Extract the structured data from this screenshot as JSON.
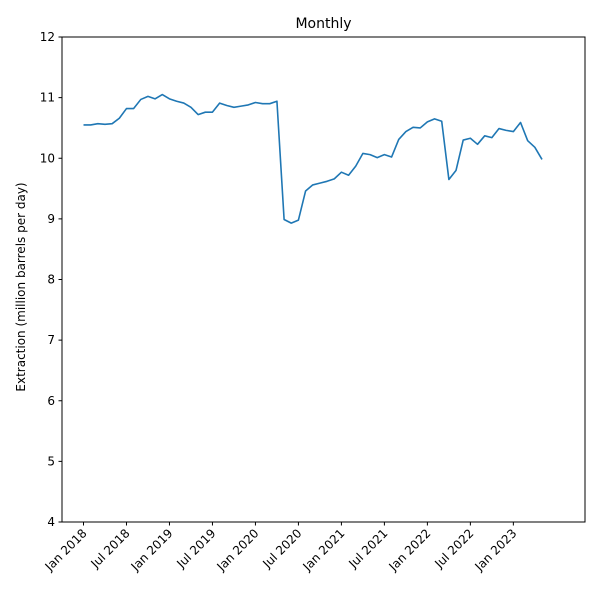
{
  "chart_data": {
    "type": "line",
    "title": "Monthly",
    "xlabel": "",
    "ylabel": "Extraction (million barrels per day)",
    "ylim": [
      4,
      12
    ],
    "yticks": [
      4,
      5,
      6,
      7,
      8,
      9,
      10,
      11,
      12
    ],
    "xticks": [
      {
        "date": "2018-01",
        "label": "Jan 2018"
      },
      {
        "date": "2018-07",
        "label": "Jul 2018"
      },
      {
        "date": "2019-01",
        "label": "Jan 2019"
      },
      {
        "date": "2019-07",
        "label": "Jul 2019"
      },
      {
        "date": "2020-01",
        "label": "Jan 2020"
      },
      {
        "date": "2020-07",
        "label": "Jul 2020"
      },
      {
        "date": "2021-01",
        "label": "Jan 2021"
      },
      {
        "date": "2021-07",
        "label": "Jul 2021"
      },
      {
        "date": "2022-01",
        "label": "Jan 2022"
      },
      {
        "date": "2022-07",
        "label": "Jul 2022"
      },
      {
        "date": "2023-01",
        "label": "Jan 2023"
      }
    ],
    "xlim": [
      "2017-10",
      "2023-11"
    ],
    "grid": false,
    "series": [
      {
        "color": "#1f77b4",
        "x": [
          "2018-01",
          "2018-02",
          "2018-03",
          "2018-04",
          "2018-05",
          "2018-06",
          "2018-07",
          "2018-08",
          "2018-09",
          "2018-10",
          "2018-11",
          "2018-12",
          "2019-01",
          "2019-02",
          "2019-03",
          "2019-04",
          "2019-05",
          "2019-06",
          "2019-07",
          "2019-08",
          "2019-09",
          "2019-10",
          "2019-11",
          "2019-12",
          "2020-01",
          "2020-02",
          "2020-03",
          "2020-04",
          "2020-05",
          "2020-06",
          "2020-07",
          "2020-08",
          "2020-09",
          "2020-10",
          "2020-11",
          "2020-12",
          "2021-01",
          "2021-02",
          "2021-03",
          "2021-04",
          "2021-05",
          "2021-06",
          "2021-07",
          "2021-08",
          "2021-09",
          "2021-10",
          "2021-11",
          "2021-12",
          "2022-01",
          "2022-02",
          "2022-03",
          "2022-04",
          "2022-05",
          "2022-06",
          "2022-07",
          "2022-08",
          "2022-09",
          "2022-10",
          "2022-11",
          "2022-12",
          "2023-01",
          "2023-02",
          "2023-03",
          "2023-04",
          "2023-05"
        ],
        "values": [
          10.55,
          10.55,
          10.57,
          10.56,
          10.57,
          10.66,
          10.82,
          10.82,
          10.97,
          11.02,
          10.98,
          11.05,
          10.98,
          10.94,
          10.91,
          10.84,
          10.72,
          10.76,
          10.76,
          10.91,
          10.87,
          10.84,
          10.86,
          10.88,
          10.92,
          10.9,
          10.9,
          10.94,
          8.99,
          8.93,
          8.98,
          9.46,
          9.56,
          9.59,
          9.62,
          9.66,
          9.77,
          9.72,
          9.87,
          10.08,
          10.06,
          10.01,
          10.06,
          10.02,
          10.31,
          10.44,
          10.51,
          10.5,
          10.6,
          10.65,
          10.61,
          9.65,
          9.8,
          10.3,
          10.33,
          10.23,
          10.37,
          10.34,
          10.49,
          10.46,
          10.44,
          10.59,
          10.29,
          10.18,
          9.98
        ]
      }
    ]
  }
}
